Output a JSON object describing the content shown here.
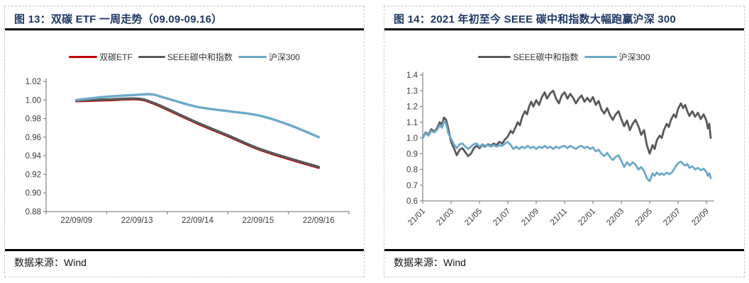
{
  "colors": {
    "title": "#1f3864",
    "rule": "#000000",
    "axis": "#8c8c8c",
    "tick_label": "#3a3a3a",
    "red": "#c00000",
    "gray": "#595959",
    "blue": "#6ca9c9",
    "dashed_border": "#c6c6c6"
  },
  "figures": [
    {
      "title": "图 13：双碳 ETF 一周走势（09.09-09.16）",
      "source": "数据来源：Wind"
    },
    {
      "title": "图 14：2021 年初至今 SEEE 碳中和指数大幅跑赢沪深 300",
      "source": "数据来源：Wind"
    }
  ],
  "chart_data": [
    {
      "type": "line",
      "title": "双碳 ETF 一周走势（09.09-09.16）",
      "x_type": "category",
      "categories": [
        "22/09/09",
        "22/09/13",
        "22/09/14",
        "22/09/15",
        "22/09/16"
      ],
      "ylim": [
        0.88,
        1.02
      ],
      "yticks": [
        "1.02",
        "1.00",
        "0.98",
        "0.96",
        "0.94",
        "0.92",
        "0.90",
        "0.88"
      ],
      "grid": false,
      "legend_position": "top",
      "series": [
        {
          "name": "双碳ETF",
          "color": "red",
          "width": 3.4,
          "smooth": true,
          "legend_sw": 40,
          "x": [
            0,
            0.5,
            1,
            1.25,
            1.5,
            2,
            2.5,
            3,
            3.5,
            4
          ],
          "y": [
            0.9988,
            0.9998,
            1.0008,
            0.9968,
            0.9897,
            0.9747,
            0.9612,
            0.9472,
            0.9367,
            0.9272
          ]
        },
        {
          "name": "SEEE碳中和指数",
          "color": "gray",
          "width": 3.4,
          "smooth": true,
          "legend_sw": 38,
          "x": [
            0,
            0.5,
            1,
            1.25,
            1.5,
            2,
            2.5,
            3,
            3.5,
            4
          ],
          "y": [
            0.9995,
            1.0005,
            1.0015,
            0.9975,
            0.9905,
            0.9755,
            0.962,
            0.948,
            0.9375,
            0.928
          ]
        },
        {
          "name": "沪深300",
          "color": "blue",
          "width": 3.4,
          "smooth": true,
          "legend_sw": 40,
          "x": [
            0,
            0.5,
            1,
            1.25,
            1.5,
            2,
            2.5,
            3,
            3.5,
            4
          ],
          "y": [
            1.0,
            1.0035,
            1.0055,
            1.006,
            1.0015,
            0.9925,
            0.988,
            0.9835,
            0.9735,
            0.96
          ]
        }
      ]
    },
    {
      "type": "line",
      "title": "2021 年初至今 SEEE 碳中和指数大幅跑赢沪深 300",
      "x_type": "value",
      "x_ticks": [
        "21/01",
        "21/03",
        "21/05",
        "21/07",
        "21/09",
        "21/11",
        "22/01",
        "22/03",
        "22/05",
        "22/07",
        "22/09"
      ],
      "x_tick_months": [
        0,
        2,
        4,
        6,
        8,
        10,
        12,
        14,
        16,
        18,
        20
      ],
      "xlim": [
        0,
        20.3
      ],
      "x_label_rotation": -45,
      "ylim": [
        0.6,
        1.4
      ],
      "yticks": [
        "1.4",
        "1.3",
        "1.2",
        "1.1",
        "1.0",
        "0.9",
        "0.8",
        "0.7",
        "0.6"
      ],
      "grid": false,
      "legend_position": "top",
      "series": [
        {
          "name": "SEEE碳中和指数",
          "color": "gray",
          "width": 2.8,
          "smooth": false,
          "legend_sw": 46,
          "x": [
            0,
            0.2,
            0.4,
            0.6,
            0.8,
            1.0,
            1.2,
            1.35,
            1.5,
            1.65,
            1.8,
            2.0,
            2.2,
            2.4,
            2.6,
            2.8,
            3.0,
            3.2,
            3.4,
            3.6,
            3.8,
            4.0,
            4.2,
            4.4,
            4.6,
            4.8,
            5.0,
            5.2,
            5.4,
            5.6,
            5.8,
            6.0,
            6.2,
            6.35,
            6.5,
            6.7,
            6.85,
            7.0,
            7.2,
            7.35,
            7.5,
            7.65,
            7.8,
            8.0,
            8.2,
            8.4,
            8.6,
            8.75,
            9.0,
            9.2,
            9.4,
            9.6,
            9.8,
            10.0,
            10.2,
            10.4,
            10.6,
            10.8,
            11.0,
            11.2,
            11.4,
            11.6,
            11.8,
            12.0,
            12.2,
            12.4,
            12.6,
            12.8,
            13.0,
            13.2,
            13.4,
            13.6,
            13.8,
            14.0,
            14.2,
            14.4,
            14.6,
            14.8,
            15.0,
            15.2,
            15.4,
            15.6,
            15.8,
            16.0,
            16.2,
            16.35,
            16.5,
            16.7,
            16.85,
            17.0,
            17.2,
            17.35,
            17.5,
            17.7,
            17.85,
            18.0,
            18.2,
            18.35,
            18.5,
            18.65,
            18.8,
            19.0,
            19.2,
            19.4,
            19.6,
            19.8,
            20.0,
            20.1,
            20.2,
            20.3
          ],
          "y": [
            1.0,
            1.035,
            1.02,
            1.055,
            1.04,
            1.06,
            1.1,
            1.085,
            1.13,
            1.115,
            1.06,
            0.975,
            0.935,
            0.89,
            0.925,
            0.935,
            0.91,
            0.885,
            0.9,
            0.935,
            0.95,
            0.935,
            0.955,
            0.945,
            0.96,
            0.95,
            0.965,
            0.955,
            0.975,
            0.965,
            0.99,
            1.01,
            1.045,
            1.03,
            1.06,
            1.1,
            1.08,
            1.13,
            1.17,
            1.15,
            1.2,
            1.23,
            1.2,
            1.24,
            1.21,
            1.26,
            1.29,
            1.25,
            1.285,
            1.3,
            1.25,
            1.22,
            1.27,
            1.29,
            1.25,
            1.28,
            1.255,
            1.22,
            1.25,
            1.27,
            1.23,
            1.255,
            1.23,
            1.26,
            1.21,
            1.235,
            1.18,
            1.155,
            1.19,
            1.145,
            1.115,
            1.15,
            1.17,
            1.12,
            1.075,
            1.11,
            1.05,
            1.09,
            1.115,
            1.075,
            1.02,
            1.05,
            0.955,
            0.9,
            0.955,
            0.93,
            0.985,
            1.015,
            1.0,
            1.05,
            1.09,
            1.07,
            1.115,
            1.15,
            1.13,
            1.185,
            1.22,
            1.19,
            1.21,
            1.17,
            1.14,
            1.17,
            1.135,
            1.16,
            1.12,
            1.15,
            1.11,
            1.06,
            1.09,
            1.0
          ]
        },
        {
          "name": "沪深300",
          "color": "blue",
          "width": 2.8,
          "smooth": false,
          "legend_sw": 46,
          "x": [
            0,
            0.2,
            0.4,
            0.6,
            0.8,
            1.0,
            1.2,
            1.35,
            1.5,
            1.65,
            1.8,
            2.0,
            2.2,
            2.4,
            2.6,
            2.8,
            3.0,
            3.2,
            3.4,
            3.6,
            3.8,
            4.0,
            4.2,
            4.4,
            4.6,
            4.8,
            5.0,
            5.2,
            5.4,
            5.6,
            5.8,
            6.0,
            6.2,
            6.4,
            6.6,
            6.8,
            7.0,
            7.2,
            7.4,
            7.6,
            7.8,
            8.0,
            8.2,
            8.4,
            8.6,
            8.8,
            9.0,
            9.2,
            9.4,
            9.6,
            9.8,
            10.0,
            10.2,
            10.4,
            10.6,
            10.8,
            11.0,
            11.2,
            11.4,
            11.6,
            11.8,
            12.0,
            12.2,
            12.4,
            12.6,
            12.8,
            13.0,
            13.2,
            13.4,
            13.6,
            13.8,
            14.0,
            14.2,
            14.4,
            14.6,
            14.8,
            15.0,
            15.2,
            15.4,
            15.6,
            15.8,
            16.0,
            16.2,
            16.35,
            16.5,
            16.7,
            16.85,
            17.0,
            17.2,
            17.4,
            17.6,
            17.8,
            18.0,
            18.2,
            18.35,
            18.5,
            18.65,
            18.8,
            19.0,
            19.2,
            19.4,
            19.6,
            19.8,
            20.0,
            20.1,
            20.2,
            20.3
          ],
          "y": [
            1.0,
            1.03,
            1.015,
            1.045,
            1.035,
            1.05,
            1.08,
            1.065,
            1.105,
            1.09,
            1.03,
            0.995,
            0.96,
            0.935,
            0.96,
            0.965,
            0.945,
            0.93,
            0.945,
            0.96,
            0.965,
            0.945,
            0.96,
            0.95,
            0.955,
            0.945,
            0.955,
            0.945,
            0.955,
            0.95,
            0.965,
            0.975,
            0.955,
            0.93,
            0.945,
            0.93,
            0.945,
            0.935,
            0.95,
            0.935,
            0.945,
            0.93,
            0.945,
            0.935,
            0.95,
            0.935,
            0.945,
            0.93,
            0.945,
            0.935,
            0.945,
            0.95,
            0.935,
            0.95,
            0.94,
            0.93,
            0.945,
            0.95,
            0.935,
            0.945,
            0.93,
            0.94,
            0.915,
            0.925,
            0.9,
            0.885,
            0.905,
            0.88,
            0.86,
            0.88,
            0.89,
            0.855,
            0.815,
            0.845,
            0.825,
            0.845,
            0.83,
            0.8,
            0.815,
            0.79,
            0.745,
            0.725,
            0.775,
            0.76,
            0.78,
            0.765,
            0.775,
            0.765,
            0.78,
            0.77,
            0.785,
            0.815,
            0.84,
            0.85,
            0.835,
            0.825,
            0.835,
            0.81,
            0.82,
            0.8,
            0.81,
            0.795,
            0.805,
            0.785,
            0.76,
            0.775,
            0.745
          ]
        }
      ]
    }
  ]
}
